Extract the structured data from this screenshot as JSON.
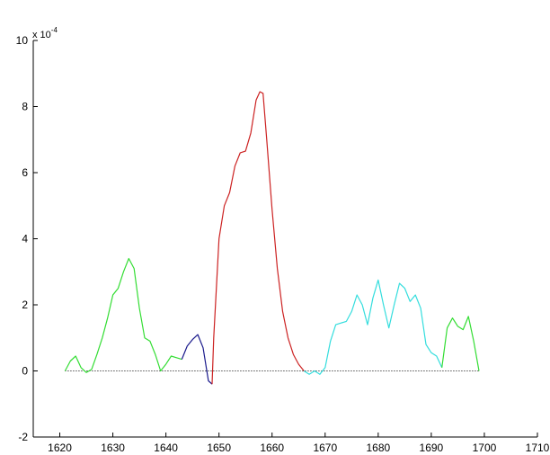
{
  "chart_data": {
    "type": "line",
    "title": "",
    "xlabel": "",
    "ylabel": "",
    "xlim": [
      1615,
      1710
    ],
    "ylim": [
      -2,
      10
    ],
    "y_multiplier": {
      "base": "x 10",
      "exponent": "-4"
    },
    "grid": false,
    "legend": "none",
    "x_ticks": [
      {
        "value": 1620,
        "label": "1620"
      },
      {
        "value": 1630,
        "label": "1630"
      },
      {
        "value": 1640,
        "label": "1640"
      },
      {
        "value": 1650,
        "label": "1650"
      },
      {
        "value": 1660,
        "label": "1660"
      },
      {
        "value": 1670,
        "label": "1670"
      },
      {
        "value": 1680,
        "label": "1680"
      },
      {
        "value": 1690,
        "label": "1690"
      },
      {
        "value": 1700,
        "label": "1700"
      },
      {
        "value": 1710,
        "label": "1710"
      }
    ],
    "y_ticks": [
      {
        "value": -2,
        "label": "-2"
      },
      {
        "value": 0,
        "label": "0"
      },
      {
        "value": 2,
        "label": "2"
      },
      {
        "value": 4,
        "label": "4"
      },
      {
        "value": 6,
        "label": "6"
      },
      {
        "value": 8,
        "label": "8"
      },
      {
        "value": 10,
        "label": "10"
      }
    ],
    "baseline": {
      "y": 0,
      "from": 1621,
      "to": 1699,
      "style": "dotted",
      "color": "#000000"
    },
    "series": [
      {
        "color": "#33dd33",
        "x": [
          1621,
          1622,
          1623,
          1624,
          1625,
          1626,
          1627,
          1628,
          1629,
          1630,
          1631,
          1632,
          1633,
          1634,
          1635,
          1636,
          1637,
          1638,
          1639,
          1640,
          1641,
          1642,
          1643
        ],
        "y": [
          0,
          0.3,
          0.45,
          0.1,
          -0.05,
          0.05,
          0.5,
          1.0,
          1.6,
          2.3,
          2.5,
          3.0,
          3.4,
          3.1,
          1.9,
          1.0,
          0.9,
          0.5,
          0,
          0.2,
          0.45,
          0.4,
          0.35
        ]
      },
      {
        "color": "#1a1a8c",
        "x": [
          1643,
          1644,
          1645,
          1646,
          1647,
          1648,
          1648.7
        ],
        "y": [
          0.35,
          0.75,
          0.95,
          1.1,
          0.7,
          -0.3,
          -0.4
        ]
      },
      {
        "color": "#cc2222",
        "x": [
          1648.7,
          1649,
          1650,
          1651,
          1652,
          1653,
          1654,
          1655,
          1656,
          1657,
          1657.7,
          1658.3,
          1659,
          1660,
          1661,
          1662,
          1663,
          1664,
          1665,
          1666
        ],
        "y": [
          -0.4,
          1.0,
          4.0,
          5.0,
          5.4,
          6.2,
          6.6,
          6.65,
          7.2,
          8.2,
          8.45,
          8.4,
          7.0,
          4.9,
          3.1,
          1.8,
          1.0,
          0.5,
          0.2,
          0
        ]
      },
      {
        "color": "#33dddd",
        "x": [
          1666,
          1667,
          1668,
          1669,
          1670,
          1671,
          1672,
          1673,
          1674,
          1675,
          1676,
          1677,
          1678,
          1679,
          1680,
          1681,
          1682,
          1683,
          1684,
          1685,
          1686,
          1687,
          1688,
          1689,
          1690,
          1691,
          1692
        ],
        "y": [
          0,
          -0.1,
          0,
          -0.1,
          0.1,
          0.9,
          1.4,
          1.45,
          1.5,
          1.8,
          2.3,
          2.0,
          1.4,
          2.2,
          2.75,
          2.0,
          1.3,
          2.0,
          2.65,
          2.5,
          2.1,
          2.3,
          1.9,
          0.8,
          0.55,
          0.45,
          0.1
        ]
      },
      {
        "color": "#33dd33",
        "x": [
          1692,
          1693,
          1694,
          1695,
          1696,
          1697,
          1698,
          1699
        ],
        "y": [
          0.1,
          1.3,
          1.6,
          1.35,
          1.25,
          1.65,
          0.9,
          0
        ]
      }
    ]
  }
}
